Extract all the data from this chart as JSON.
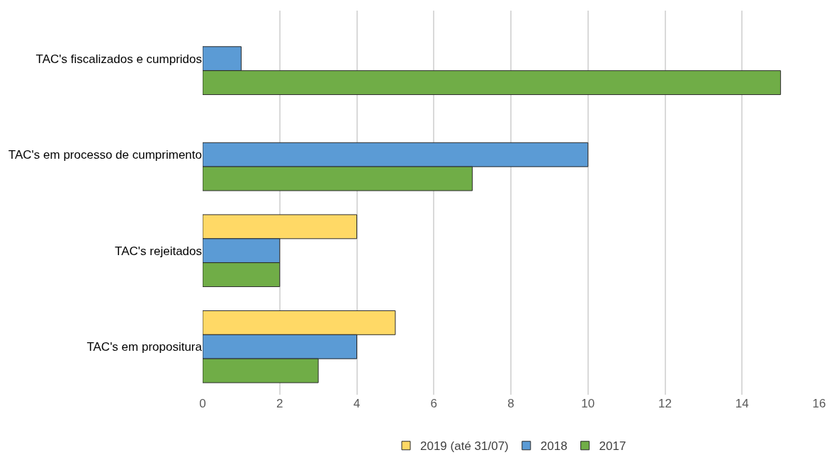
{
  "chart_data": {
    "type": "bar",
    "orientation": "horizontal",
    "categories": [
      "TAC's fiscalizados e cumpridos",
      "TAC's em processo de cumprimento",
      "TAC's rejeitados",
      "TAC's em propositura"
    ],
    "series": [
      {
        "name": "2019 (até 31/07)",
        "color": "#ffd966",
        "values": [
          null,
          null,
          4,
          5
        ]
      },
      {
        "name": "2018",
        "color": "#5b9bd5",
        "values": [
          1,
          10,
          2,
          4
        ]
      },
      {
        "name": "2017",
        "color": "#70ad47",
        "values": [
          15,
          7,
          2,
          3
        ]
      }
    ],
    "xlim": [
      0,
      16
    ],
    "xticks": [
      0,
      2,
      4,
      6,
      8,
      10,
      12,
      14,
      16
    ],
    "grid": "x",
    "legend": "bottom"
  }
}
